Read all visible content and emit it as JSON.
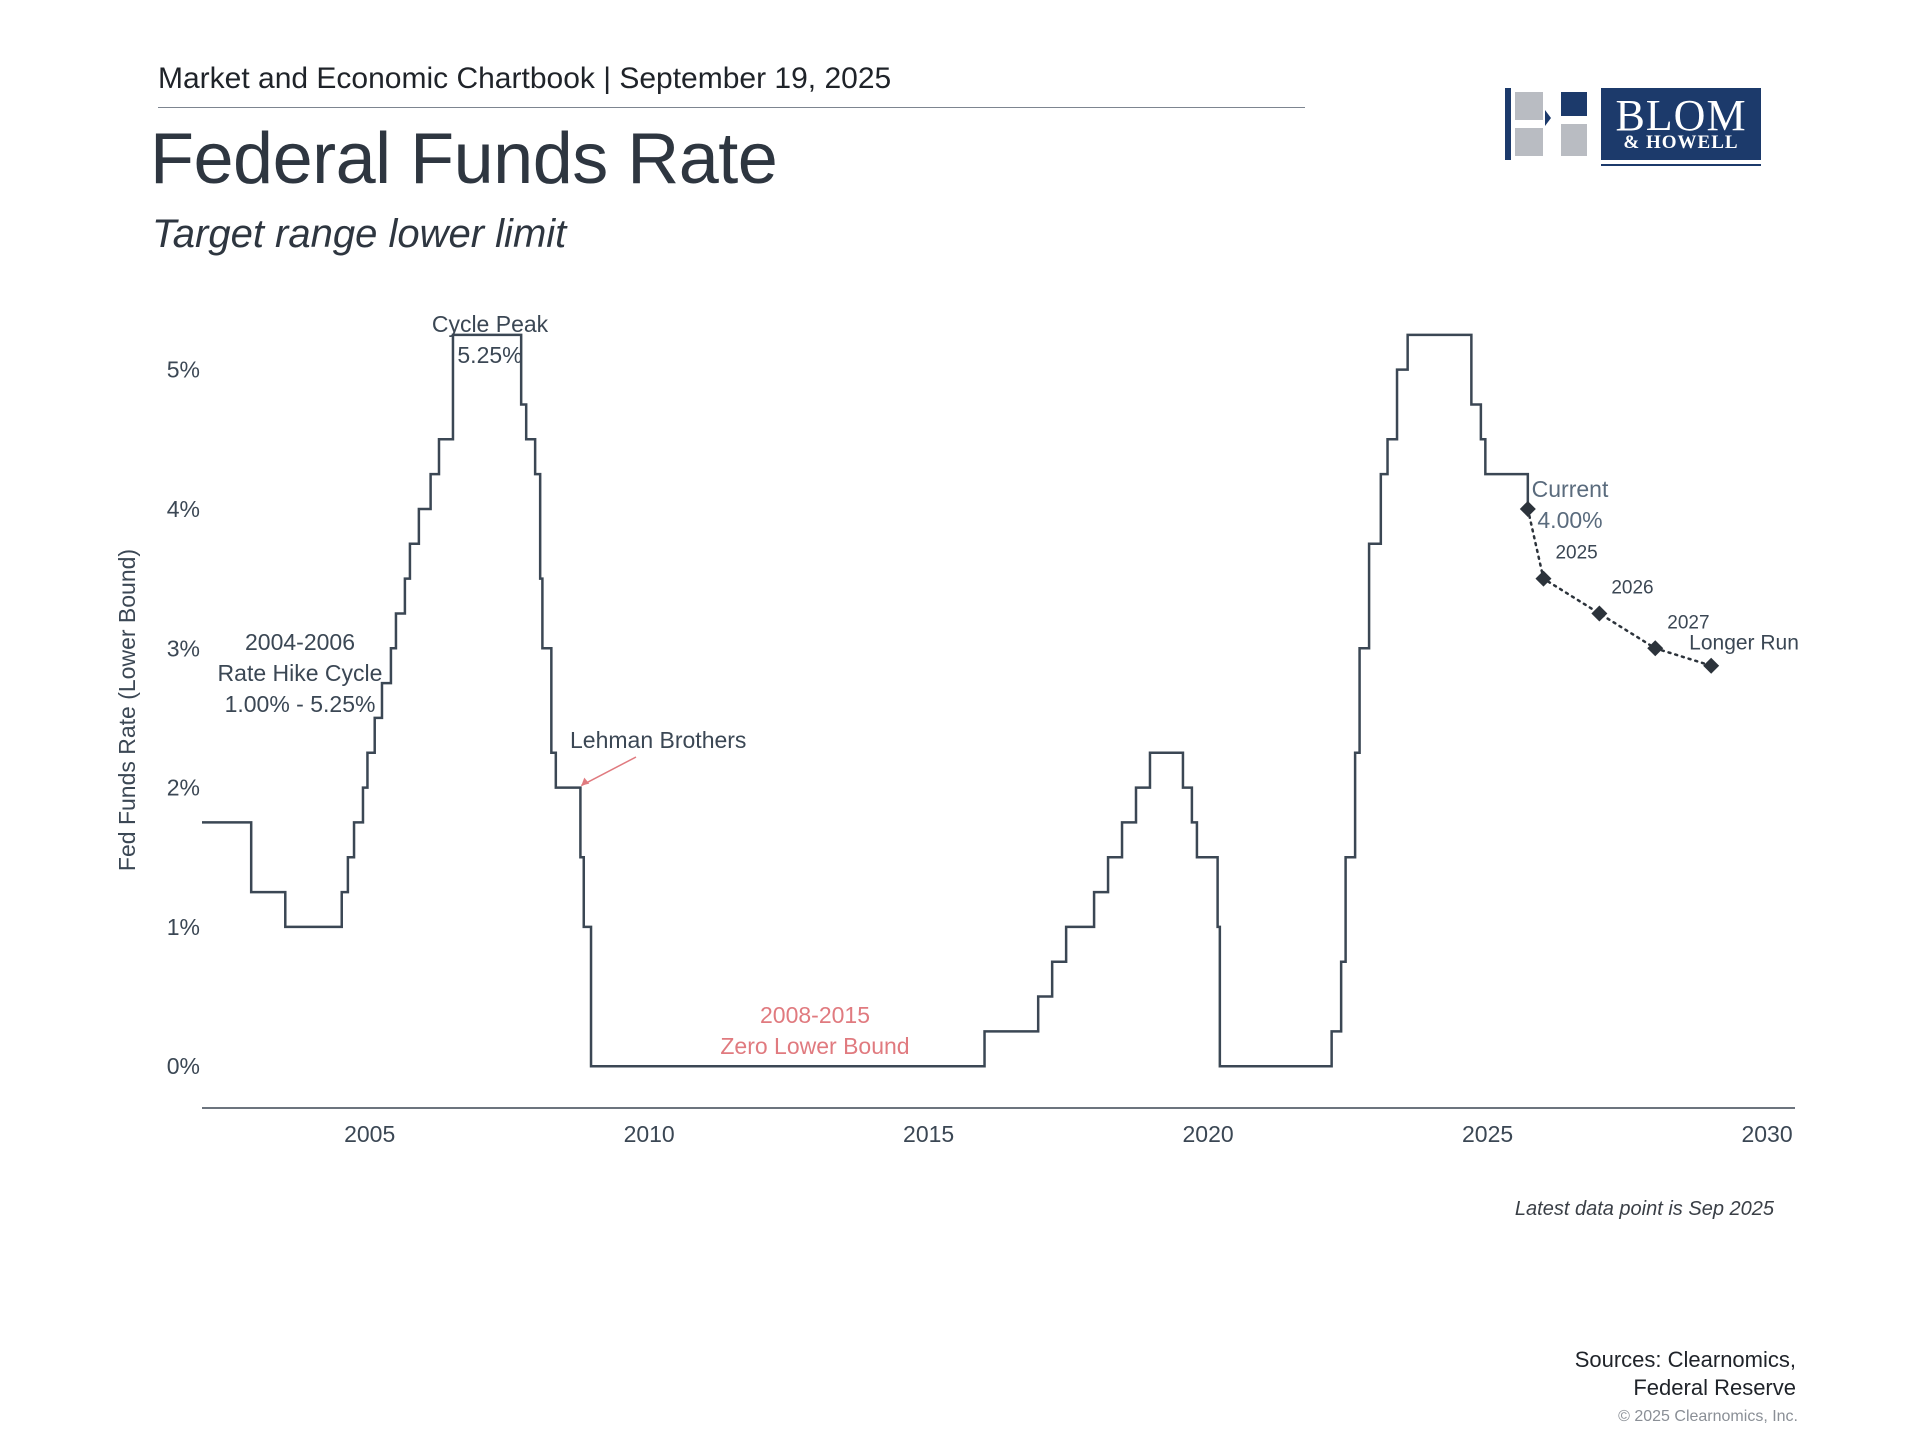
{
  "header": {
    "chartbook_line": "Market and Economic Chartbook | September 19, 2025",
    "title": "Federal Funds Rate",
    "subtitle": "Target range lower limit"
  },
  "logo": {
    "name": "BLOM",
    "sub": "& HOWELL",
    "colors": {
      "navy": "#1c3a6b",
      "gray": "#b9bcc2"
    }
  },
  "chart_data": {
    "type": "line",
    "ylabel": "Fed Funds Rate (Lower Bound)",
    "xlabel": "",
    "xlim": [
      2002.0,
      2030.5
    ],
    "ylim": [
      -0.3,
      5.5
    ],
    "y_ticks": [
      {
        "value": 0,
        "label": "0%"
      },
      {
        "value": 1,
        "label": "1%"
      },
      {
        "value": 2,
        "label": "2%"
      },
      {
        "value": 3,
        "label": "3%"
      },
      {
        "value": 4,
        "label": "4%"
      },
      {
        "value": 5,
        "label": "5%"
      }
    ],
    "x_ticks": [
      {
        "value": 2005,
        "label": "2005"
      },
      {
        "value": 2010,
        "label": "2010"
      },
      {
        "value": 2015,
        "label": "2015"
      },
      {
        "value": 2020,
        "label": "2020"
      },
      {
        "value": 2025,
        "label": "2025"
      },
      {
        "value": 2030,
        "label": "2030"
      }
    ],
    "grid": false,
    "series": [
      {
        "style": "step",
        "color": "#3b4754",
        "x": [
          2002.0,
          2002.88,
          2003.49,
          2004.5,
          2004.61,
          2004.72,
          2004.88,
          2004.96,
          2005.09,
          2005.22,
          2005.38,
          2005.47,
          2005.63,
          2005.72,
          2005.88,
          2006.09,
          2006.24,
          2006.49,
          2007.71,
          2007.8,
          2007.96,
          2008.05,
          2008.09,
          2008.25,
          2008.33,
          2008.77,
          2008.83,
          2008.96,
          2016.0,
          2016.96,
          2017.21,
          2017.46,
          2017.96,
          2018.21,
          2018.46,
          2018.71,
          2018.96,
          2019.55,
          2019.71,
          2019.8,
          2020.17,
          2020.21,
          2022.21,
          2022.38,
          2022.46,
          2022.63,
          2022.71,
          2022.88,
          2023.09,
          2023.21,
          2023.38,
          2023.57,
          2024.71,
          2024.88,
          2024.96,
          2025.72
        ],
        "y": [
          1.75,
          1.25,
          1.0,
          1.25,
          1.5,
          1.75,
          2.0,
          2.25,
          2.5,
          2.75,
          3.0,
          3.25,
          3.5,
          3.75,
          4.0,
          4.25,
          4.5,
          5.25,
          4.75,
          4.5,
          4.25,
          3.5,
          3.0,
          2.25,
          2.0,
          1.5,
          1.0,
          0.0,
          0.25,
          0.5,
          0.75,
          1.0,
          1.25,
          1.5,
          1.75,
          2.0,
          2.25,
          2.0,
          1.75,
          1.5,
          1.0,
          0.0,
          0.25,
          0.75,
          1.5,
          2.25,
          3.0,
          3.75,
          4.25,
          4.5,
          5.0,
          5.25,
          4.75,
          4.5,
          4.25,
          4.25
        ]
      },
      {
        "style": "dotted",
        "color": "#2c333b",
        "x": [
          2025.72,
          2026.0,
          2027.0,
          2028.0,
          2029.0
        ],
        "y": [
          4.0,
          3.5,
          3.25,
          3.0,
          2.875
        ],
        "labels": [
          "",
          "2025",
          "2026",
          "2027",
          "Longer Run"
        ]
      }
    ],
    "annotations": [
      {
        "text": "Cycle Peak\n5.25%",
        "x": 2004.0,
        "y": 5.25,
        "color": "#3b4754"
      },
      {
        "text": "2004-2006\nRate Hike Cycle\n1.00% - 5.25%",
        "x": 2004.0,
        "y": 3.3,
        "color": "#3b4754"
      },
      {
        "text": "Lehman Brothers",
        "x": 2008.75,
        "y": 2.0,
        "color": "#3b4754"
      },
      {
        "text": "2008-2015\nZero Lower Bound",
        "x": 2012.0,
        "y": 0.2,
        "color": "#e07a7f"
      },
      {
        "text": "Current\n4.00%",
        "x": 2025.72,
        "y": 4.0,
        "color": "#5a6b7d"
      }
    ]
  },
  "footer": {
    "note": "Latest data point is Sep 2025",
    "sources": "Sources: Clearnomics,\nFederal Reserve",
    "copyright": "© 2025 Clearnomics, Inc."
  }
}
